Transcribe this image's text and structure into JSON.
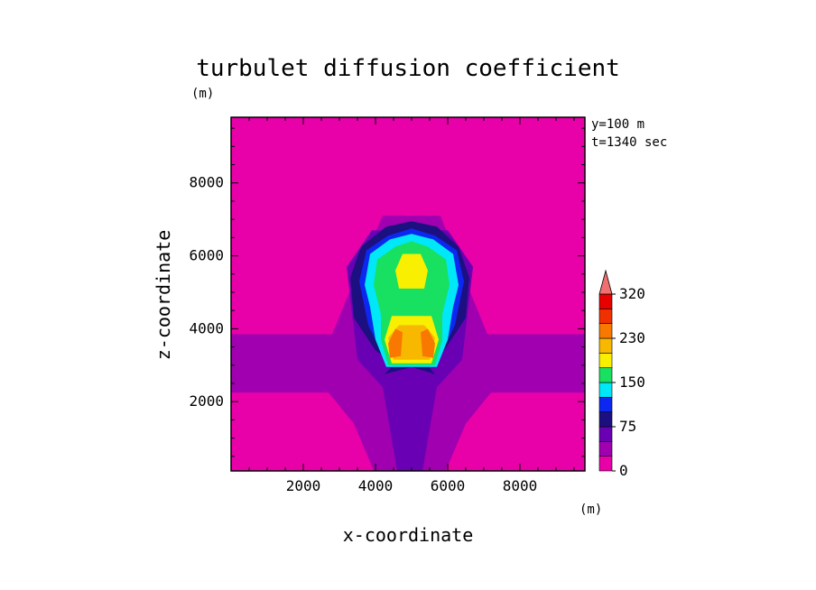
{
  "chart_data": {
    "type": "heatmap",
    "title": "turbulet diffusion coefficient",
    "xlabel": "x-coordinate",
    "ylabel": "z-coordinate",
    "x_unit": "(m)",
    "y_unit": "(m)",
    "annotations": [
      "y=100 m",
      "t=1340 sec"
    ],
    "xlim": [
      0,
      9800
    ],
    "ylim": [
      100,
      9800
    ],
    "x_ticks": [
      2000,
      4000,
      6000,
      8000
    ],
    "y_ticks": [
      2000,
      4000,
      6000,
      8000
    ],
    "colorbar": {
      "levels": [
        0,
        25,
        50,
        75,
        100,
        125,
        150,
        175,
        200,
        230,
        255,
        290,
        320
      ],
      "labeled_levels": [
        "0",
        "75",
        "150",
        "230",
        "320"
      ],
      "colors": [
        "#e800a8",
        "#a000b0",
        "#6a00b4",
        "#1c1080",
        "#0c28f0",
        "#00e8f8",
        "#18e060",
        "#f8f000",
        "#f8b800",
        "#f87800",
        "#f03000",
        "#e80000"
      ],
      "extend_max_color": "#f07070",
      "extend": "max"
    },
    "regions": [
      {
        "level": 1,
        "points": [
          [
            0,
            2250
          ],
          [
            2700,
            2250
          ],
          [
            3400,
            1400
          ],
          [
            4000,
            0
          ],
          [
            5900,
            0
          ],
          [
            6500,
            1400
          ],
          [
            7200,
            2250
          ],
          [
            9800,
            2250
          ],
          [
            9800,
            3850
          ],
          [
            7100,
            3850
          ],
          [
            6500,
            5300
          ],
          [
            5800,
            7100
          ],
          [
            4200,
            7100
          ],
          [
            3400,
            5300
          ],
          [
            2800,
            3850
          ],
          [
            0,
            3850
          ]
        ]
      },
      {
        "level": 2,
        "points": [
          [
            3500,
            3150
          ],
          [
            4200,
            2400
          ],
          [
            4600,
            100
          ],
          [
            5300,
            100
          ],
          [
            5700,
            2400
          ],
          [
            6400,
            3150
          ],
          [
            6700,
            5700
          ],
          [
            6000,
            6700
          ],
          [
            3900,
            6700
          ],
          [
            3200,
            5700
          ]
        ]
      },
      {
        "level": 3,
        "points": [
          [
            4250,
            2750
          ],
          [
            4550,
            3050
          ],
          [
            4000,
            3400
          ],
          [
            3400,
            4300
          ],
          [
            3300,
            5400
          ],
          [
            3600,
            6250
          ],
          [
            4300,
            6800
          ],
          [
            5000,
            6950
          ],
          [
            5700,
            6800
          ],
          [
            6300,
            6250
          ],
          [
            6600,
            5400
          ],
          [
            6500,
            4300
          ],
          [
            5900,
            3400
          ],
          [
            5400,
            3050
          ],
          [
            5650,
            2750
          ],
          [
            5000,
            2950
          ]
        ]
      },
      {
        "level": 4,
        "points": [
          [
            4350,
            3000
          ],
          [
            5650,
            3000
          ],
          [
            6200,
            4100
          ],
          [
            6450,
            5300
          ],
          [
            6250,
            6150
          ],
          [
            5650,
            6550
          ],
          [
            5000,
            6750
          ],
          [
            4350,
            6550
          ],
          [
            3750,
            6150
          ],
          [
            3550,
            5300
          ],
          [
            3800,
            4100
          ]
        ]
      },
      {
        "level": 5,
        "points": [
          [
            4300,
            2950
          ],
          [
            5700,
            2950
          ],
          [
            6000,
            3700
          ],
          [
            6150,
            4600
          ],
          [
            6300,
            5200
          ],
          [
            6150,
            6050
          ],
          [
            5600,
            6450
          ],
          [
            5000,
            6600
          ],
          [
            4400,
            6450
          ],
          [
            3850,
            6050
          ],
          [
            3700,
            5200
          ],
          [
            3850,
            4600
          ],
          [
            4000,
            3700
          ]
        ]
      },
      {
        "level": 6,
        "points": [
          [
            4350,
            3000
          ],
          [
            5650,
            3000
          ],
          [
            5850,
            3700
          ],
          [
            5850,
            4400
          ],
          [
            6050,
            5200
          ],
          [
            5950,
            5900
          ],
          [
            5450,
            6250
          ],
          [
            5000,
            6400
          ],
          [
            4550,
            6250
          ],
          [
            4050,
            5900
          ],
          [
            3950,
            5200
          ],
          [
            4150,
            4400
          ],
          [
            4150,
            3700
          ]
        ]
      },
      {
        "level": 7,
        "points": [
          [
            4450,
            3050
          ],
          [
            5550,
            3050
          ],
          [
            5750,
            3700
          ],
          [
            5550,
            4350
          ],
          [
            4450,
            4350
          ],
          [
            4250,
            3700
          ]
        ]
      },
      {
        "level": 7,
        "points": [
          [
            4650,
            5100
          ],
          [
            5350,
            5100
          ],
          [
            5450,
            5600
          ],
          [
            5250,
            6050
          ],
          [
            4750,
            6050
          ],
          [
            4550,
            5600
          ]
        ]
      },
      {
        "level": 8,
        "points": [
          [
            4500,
            3150
          ],
          [
            5500,
            3150
          ],
          [
            5650,
            3750
          ],
          [
            5350,
            4100
          ],
          [
            4650,
            4100
          ],
          [
            4350,
            3750
          ]
        ]
      },
      {
        "level": 9,
        "points": [
          [
            4400,
            3200
          ],
          [
            4700,
            3250
          ],
          [
            4750,
            3900
          ],
          [
            4550,
            4000
          ],
          [
            4350,
            3600
          ]
        ]
      },
      {
        "level": 9,
        "points": [
          [
            5300,
            3250
          ],
          [
            5600,
            3200
          ],
          [
            5650,
            3600
          ],
          [
            5450,
            4000
          ],
          [
            5250,
            3900
          ]
        ]
      }
    ]
  }
}
